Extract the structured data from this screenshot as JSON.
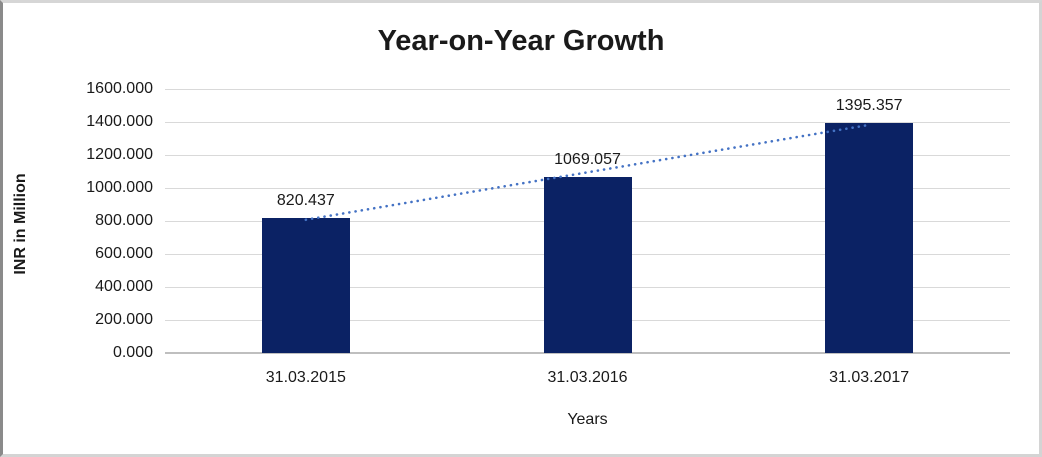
{
  "chart_data": {
    "type": "bar",
    "title": "Year-on-Year Growth",
    "xlabel": "Years",
    "ylabel": "INR in Million",
    "categories": [
      "31.03.2015",
      "31.03.2016",
      "31.03.2017"
    ],
    "values": [
      820.437,
      1069.057,
      1395.357
    ],
    "data_labels": [
      "820.437",
      "1069.057",
      "1395.357"
    ],
    "ylim": [
      0,
      1600
    ],
    "ytick_step": 200,
    "ytick_labels": [
      "0.000",
      "200.000",
      "400.000",
      "600.000",
      "800.000",
      "1000.000",
      "1200.000",
      "1400.000",
      "1600.000"
    ],
    "grid": true,
    "legend_position": "none",
    "trendline": {
      "type": "linear",
      "style": "dotted"
    },
    "colors": {
      "bar": "#0b2264",
      "trendline": "#4472c4",
      "gridline": "#d9d9d9",
      "axis_line": "#bfbfbf",
      "text": "#1a1a1a"
    }
  }
}
